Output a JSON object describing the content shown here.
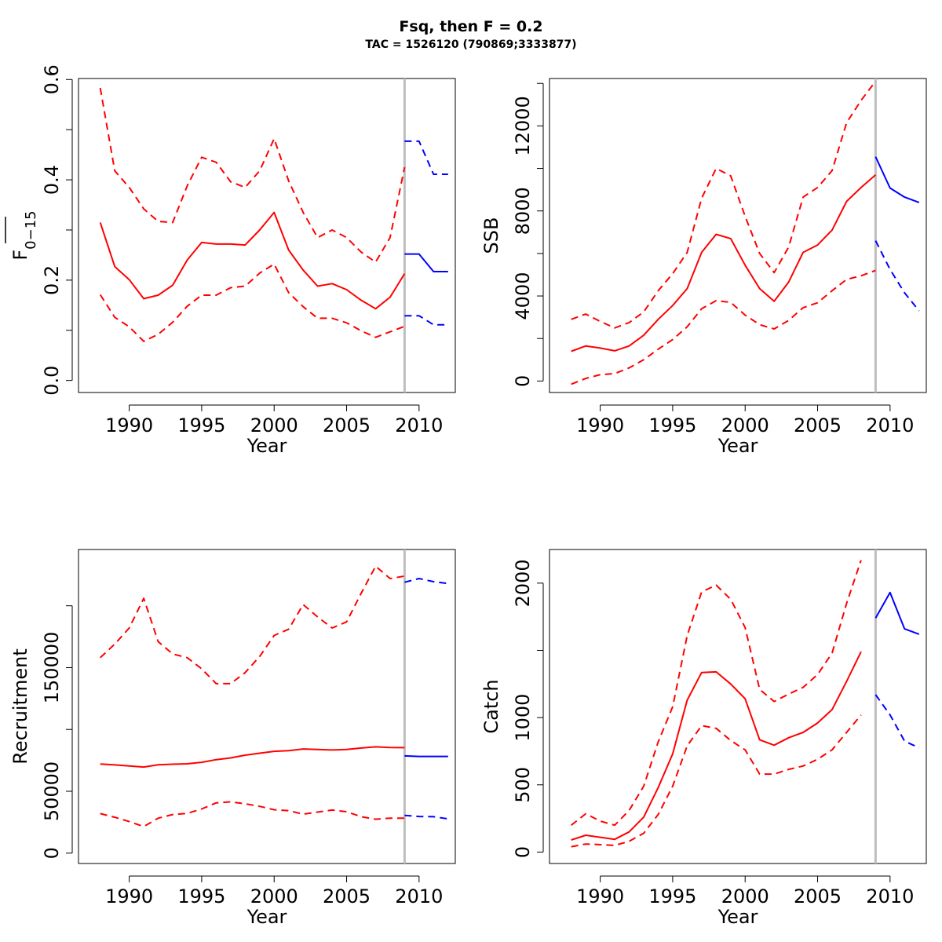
{
  "title": "Fsq, then F = 0.2",
  "subtitle": "TAC = 1526120 (790869;3333877)",
  "colors": {
    "history": "#ff0000",
    "projection": "#0000ff",
    "divider": "#bebebe",
    "axis": "#000000"
  },
  "chart_data": [
    {
      "type": "line",
      "panel": "fbar",
      "xlabel": "Year",
      "ylabel": "F",
      "ylabel_sub": "0−15",
      "xlim": [
        1986.5,
        2012.5
      ],
      "ylim": [
        -0.024,
        0.602
      ],
      "xticks": [
        1990,
        1995,
        2000,
        2005,
        2010
      ],
      "xticklabels": [
        "1990",
        "1995",
        "2000",
        "2005",
        "2010"
      ],
      "yticks": [
        0,
        0.1,
        0.2,
        0.3,
        0.4,
        0.5,
        0.6
      ],
      "yticklabels": [
        "0.0",
        "",
        "0.2",
        "",
        "0.4",
        "",
        "0.6"
      ],
      "divider_year": 2009,
      "history": {
        "years": [
          1988,
          1989,
          1990,
          1991,
          1992,
          1993,
          1994,
          1995,
          1996,
          1997,
          1998,
          1999,
          2000,
          2001,
          2002,
          2003,
          2004,
          2005,
          2006,
          2007,
          2008,
          2009
        ],
        "median": [
          0.315,
          0.227,
          0.201,
          0.163,
          0.17,
          0.19,
          0.24,
          0.275,
          0.272,
          0.272,
          0.27,
          0.3,
          0.335,
          0.26,
          0.22,
          0.188,
          0.193,
          0.181,
          0.16,
          0.143,
          0.166,
          0.213
        ],
        "lower": [
          0.171,
          0.126,
          0.107,
          0.078,
          0.092,
          0.116,
          0.148,
          0.17,
          0.17,
          0.185,
          0.188,
          0.214,
          0.232,
          0.175,
          0.147,
          0.124,
          0.124,
          0.115,
          0.099,
          0.086,
          0.097,
          0.108
        ],
        "upper": [
          0.583,
          0.418,
          0.385,
          0.342,
          0.317,
          0.315,
          0.388,
          0.445,
          0.435,
          0.396,
          0.385,
          0.418,
          0.482,
          0.398,
          0.335,
          0.285,
          0.3,
          0.285,
          0.256,
          0.236,
          0.285,
          0.425
        ]
      },
      "projection": {
        "years": [
          2009,
          2010,
          2011,
          2012
        ],
        "median": [
          0.252,
          0.252,
          0.217,
          0.217
        ],
        "lower": [
          0.129,
          0.129,
          0.111,
          0.111
        ],
        "upper": [
          0.477,
          0.477,
          0.411,
          0.411
        ]
      }
    },
    {
      "type": "line",
      "panel": "ssb",
      "xlabel": "Year",
      "ylabel": "SSB",
      "xlim": [
        1986.5,
        2012.5
      ],
      "ylim": [
        -540,
        14230
      ],
      "xticks": [
        1990,
        1995,
        2000,
        2005,
        2010
      ],
      "xticklabels": [
        "1990",
        "1995",
        "2000",
        "2005",
        "2010"
      ],
      "yticks": [
        0,
        2000,
        4000,
        6000,
        8000,
        10000,
        12000,
        14000
      ],
      "yticklabels": [
        "0",
        "",
        "4000",
        "",
        "8000",
        "",
        "12000",
        ""
      ],
      "divider_year": 2009,
      "history": {
        "years": [
          1988,
          1989,
          1990,
          1991,
          1992,
          1993,
          1994,
          1995,
          1996,
          1997,
          1998,
          1999,
          2000,
          2001,
          2002,
          2003,
          2004,
          2005,
          2006,
          2007,
          2008,
          2009
        ],
        "median": [
          1400,
          1650,
          1550,
          1420,
          1650,
          2150,
          2900,
          3550,
          4350,
          6050,
          6900,
          6700,
          5450,
          4350,
          3750,
          4650,
          6050,
          6400,
          7100,
          8450,
          9100,
          9700
        ],
        "lower": [
          -150,
          120,
          300,
          350,
          620,
          1000,
          1500,
          1950,
          2550,
          3400,
          3780,
          3700,
          3100,
          2650,
          2450,
          2850,
          3450,
          3680,
          4250,
          4780,
          4950,
          5200
        ],
        "upper": [
          2900,
          3150,
          2800,
          2500,
          2750,
          3250,
          4250,
          5050,
          6050,
          8600,
          10000,
          9650,
          7750,
          6000,
          5100,
          6300,
          8650,
          9100,
          9900,
          12150,
          13200,
          14100
        ]
      },
      "projection": {
        "years": [
          2009,
          2010,
          2011,
          2012
        ],
        "median": [
          10550,
          9080,
          8650,
          8400
        ],
        "lower": [
          6600,
          5250,
          4150,
          3300
        ],
        "upper": []
      }
    },
    {
      "type": "line",
      "panel": "recruitment",
      "xlabel": "Year",
      "ylabel": "Recruitment",
      "xlim": [
        1986.5,
        2012.5
      ],
      "ylim": [
        -8400,
        245500
      ],
      "xticks": [
        1990,
        1995,
        2000,
        2005,
        2010
      ],
      "xticklabels": [
        "1990",
        "1995",
        "2000",
        "2005",
        "2010"
      ],
      "yticks": [
        0,
        50000,
        100000,
        150000,
        200000
      ],
      "yticklabels": [
        "0",
        "50000",
        "",
        "150000",
        ""
      ],
      "divider_year": 2009,
      "history": {
        "years": [
          1988,
          1989,
          1990,
          1991,
          1992,
          1993,
          1994,
          1995,
          1996,
          1997,
          1998,
          1999,
          2000,
          2001,
          2002,
          2003,
          2004,
          2005,
          2006,
          2007,
          2008,
          2009
        ],
        "median": [
          72000,
          71300,
          70500,
          69600,
          71400,
          71900,
          72200,
          73400,
          75600,
          77000,
          79200,
          80800,
          82300,
          82800,
          84200,
          83800,
          83400,
          83800,
          85000,
          85900,
          85400,
          85300
        ],
        "lower": [
          32000,
          29000,
          25500,
          21500,
          28200,
          31200,
          32100,
          35700,
          40600,
          41400,
          39900,
          37800,
          35100,
          34300,
          31500,
          33200,
          34800,
          33500,
          29400,
          27400,
          28300,
          28300
        ],
        "upper": [
          158000,
          169000,
          182000,
          206000,
          171000,
          161000,
          158000,
          149000,
          137000,
          137000,
          146000,
          159000,
          176000,
          181000,
          201000,
          191000,
          182000,
          187000,
          210000,
          232000,
          222000,
          224000
        ]
      },
      "projection": {
        "years": [
          2009,
          2010,
          2011,
          2012
        ],
        "median": [
          78600,
          78200,
          78200,
          78200
        ],
        "lower": [
          30500,
          29600,
          29400,
          27700
        ],
        "upper": [
          219000,
          222000,
          219500,
          218000
        ]
      }
    },
    {
      "type": "line",
      "panel": "catch",
      "xlabel": "Year",
      "ylabel": "Catch",
      "xlim": [
        1986.5,
        2012.5
      ],
      "ylim": [
        -85,
        2250
      ],
      "xticks": [
        1990,
        1995,
        2000,
        2005,
        2010
      ],
      "xticklabels": [
        "1990",
        "1995",
        "2000",
        "2005",
        "2010"
      ],
      "yticks": [
        0,
        500,
        1000,
        1500,
        2000
      ],
      "yticklabels": [
        "0",
        "500",
        "1000",
        "",
        "2000"
      ],
      "divider_year": 2009,
      "history": {
        "years": [
          1988,
          1989,
          1990,
          1991,
          1992,
          1993,
          1994,
          1995,
          1996,
          1997,
          1998,
          1999,
          2000,
          2001,
          2002,
          2003,
          2004,
          2005,
          2006,
          2007,
          2008
        ],
        "median": [
          90,
          125,
          110,
          95,
          150,
          260,
          480,
          730,
          1130,
          1335,
          1340,
          1250,
          1140,
          835,
          795,
          850,
          890,
          960,
          1060,
          1270,
          1490
        ],
        "lower": [
          40,
          60,
          55,
          50,
          80,
          140,
          280,
          490,
          790,
          940,
          920,
          830,
          760,
          580,
          580,
          615,
          640,
          690,
          760,
          890,
          1020
        ],
        "upper": [
          200,
          285,
          230,
          200,
          310,
          490,
          820,
          1080,
          1610,
          1935,
          1985,
          1880,
          1670,
          1210,
          1120,
          1175,
          1225,
          1320,
          1480,
          1850,
          2170
        ]
      },
      "projection": {
        "years": [
          2009,
          2010,
          2011,
          2012
        ],
        "median": [
          1740,
          1930,
          1660,
          1620
        ],
        "lower": [
          1170,
          1020,
          825,
          775
        ],
        "upper": []
      }
    }
  ]
}
